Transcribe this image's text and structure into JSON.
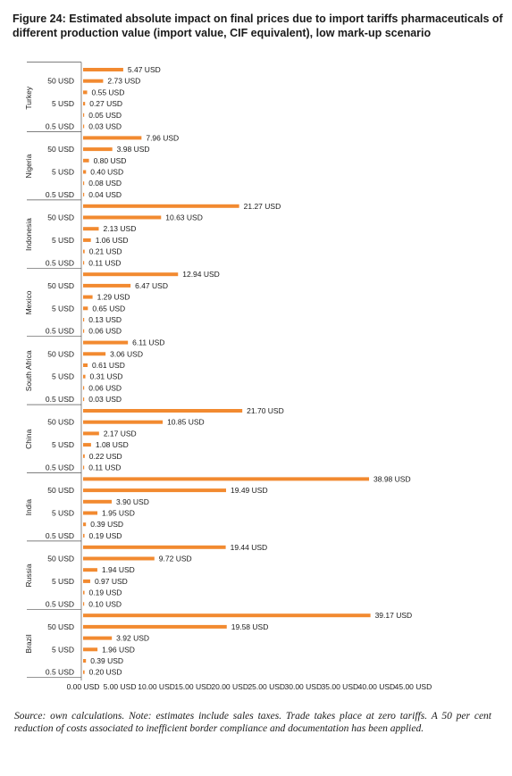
{
  "title": "Figure 24: Estimated absolute impact on final prices due to import tariffs pharmaceuticals of different production value (import value, CIF equivalent), low mark-up scenario",
  "source_note": "Source: own calculations. Note: estimates include sales taxes. Trade takes place at zero tariffs. A 50 per cent reduction of costs associated to inefficient border compliance and documentation has been applied.",
  "chart_data": {
    "type": "bar",
    "orientation": "horizontal",
    "title": "Figure 24: Estimated absolute impact on final prices due to import tariffs pharmaceuticals of different production value (import value, CIF equivalent), low mark-up scenario",
    "bar_color": "#F28A30",
    "value_suffix": " USD",
    "groups": [
      "Turkey",
      "Nigeria",
      "Indonesia",
      "Mexico",
      "South Africa",
      "China",
      "India",
      "Russia",
      "Brazil"
    ],
    "bars_per_group": 6,
    "row_tick_labels": [
      "",
      "50 USD",
      "",
      "5 USD",
      "",
      "0.5 USD"
    ],
    "series_values": [
      [
        5.47,
        2.73,
        0.55,
        0.27,
        0.05,
        0.03
      ],
      [
        7.96,
        3.98,
        0.8,
        0.4,
        0.08,
        0.04
      ],
      [
        21.27,
        10.63,
        2.13,
        1.06,
        0.21,
        0.11
      ],
      [
        12.94,
        6.47,
        1.29,
        0.65,
        0.13,
        0.06
      ],
      [
        6.11,
        3.06,
        0.61,
        0.31,
        0.06,
        0.03
      ],
      [
        21.7,
        10.85,
        2.17,
        1.08,
        0.22,
        0.11
      ],
      [
        38.98,
        19.49,
        3.9,
        1.95,
        0.39,
        0.19
      ],
      [
        19.44,
        9.72,
        1.94,
        0.97,
        0.19,
        0.1
      ],
      [
        39.17,
        19.58,
        3.92,
        1.96,
        0.39,
        0.2
      ]
    ],
    "value_labels": [
      [
        "5.47 USD",
        "2.73 USD",
        "0.55 USD",
        "0.27 USD",
        "0.05 USD",
        "0.03 USD"
      ],
      [
        "7.96 USD",
        "3.98 USD",
        "0.80 USD",
        "0.40 USD",
        "0.08 USD",
        "0.04 USD"
      ],
      [
        "21.27 USD",
        "10.63 USD",
        "2.13 USD",
        "1.06 USD",
        "0.21 USD",
        "0.11 USD"
      ],
      [
        "12.94 USD",
        "6.47 USD",
        "1.29 USD",
        "0.65 USD",
        "0.13 USD",
        "0.06 USD"
      ],
      [
        "6.11 USD",
        "3.06 USD",
        "0.61 USD",
        "0.31 USD",
        "0.06 USD",
        "0.03 USD"
      ],
      [
        "21.70 USD",
        "10.85 USD",
        "2.17 USD",
        "1.08 USD",
        "0.22 USD",
        "0.11 USD"
      ],
      [
        "38.98 USD",
        "19.49 USD",
        "3.90 USD",
        "1.95 USD",
        "0.39 USD",
        "0.19 USD"
      ],
      [
        "19.44 USD",
        "9.72 USD",
        "1.94 USD",
        "0.97 USD",
        "0.19 USD",
        "0.10 USD"
      ],
      [
        "39.17 USD",
        "19.58 USD",
        "3.92 USD",
        "1.96 USD",
        "0.39 USD",
        "0.20 USD"
      ]
    ],
    "x_ticks": [
      0,
      5,
      10,
      15,
      20,
      25,
      30,
      35,
      40,
      45
    ],
    "x_tick_labels": [
      "0.00 USD",
      "5.00 USD",
      "10.00 USD",
      "15.00 USD",
      "20.00 USD",
      "25.00 USD",
      "30.00 USD",
      "35.00 USD",
      "40.00 USD",
      "45.00 USD"
    ],
    "xlim": [
      0,
      45
    ],
    "xlabel": "",
    "ylabel": "",
    "grid": false,
    "legend": false
  }
}
